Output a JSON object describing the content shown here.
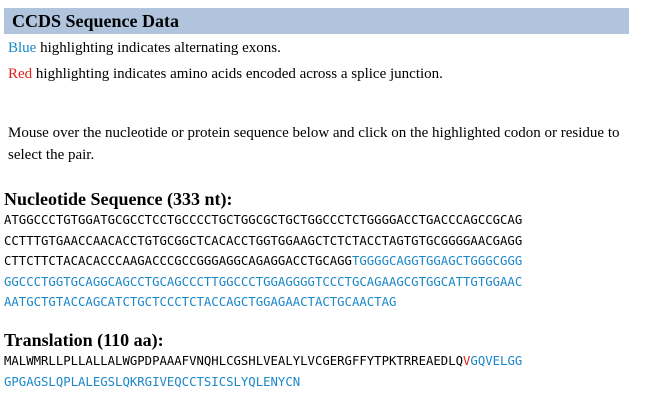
{
  "header": {
    "title": "CCDS Sequence Data"
  },
  "legend": {
    "blue_word": "Blue",
    "blue_text": " highlighting indicates alternating exons.",
    "red_word": "Red",
    "red_text": " highlighting indicates amino acids encoded across a splice junction."
  },
  "instructions": "Mouse over the nucleotide or protein sequence below and click on the highlighted codon or residue to select the pair.",
  "nucleotide": {
    "title": "Nucleotide Sequence (333 nt):",
    "lines": [
      [
        {
          "text": "ATGGCCCTGTGGATGCGCCTCCTGCCCCTGCTGGCGCTGCTGGCCCTCTGGGGACCTGACCCAGCCGCAG",
          "color": "black"
        }
      ],
      [
        {
          "text": "CCTTTGTGAACCAACACCTGTGCGGCTCACACCTGGTGGAAGCTCTCTACCTAGTGTGCGGGGAACGAGG",
          "color": "black"
        }
      ],
      [
        {
          "text": "CTTCTTCTACACACCCAAGACCCGCCGGGAGGCAGAGGACCTGCAGG",
          "color": "black"
        },
        {
          "text": "TGGGGCAGGTGGAGCTGGGCGGG",
          "color": "blue"
        }
      ],
      [
        {
          "text": "GGCCCTGGTGCAGGCAGCCTGCAGCCCTTGGCCCTGGAGGGGTCCCTGCAGAAGCGTGGCATTGTGGAAC",
          "color": "blue"
        }
      ],
      [
        {
          "text": "AATGCTGTACCAGCATCTGCTCCCTCTACCAGCTGGAGAACTACTGCAACTAG",
          "color": "blue"
        }
      ]
    ]
  },
  "translation": {
    "title": "Translation (110 aa):",
    "lines": [
      [
        {
          "text": "MALWMRLLPLLALLALWGPDPAAAFVNQHLCGSHLVEALYLVCGERGFFYTPKTRREAEDLQ",
          "color": "black"
        },
        {
          "text": "V",
          "color": "red"
        },
        {
          "text": "GQVELGG",
          "color": "blue"
        }
      ],
      [
        {
          "text": "GPGAGSLQPLALEGSLQKRGIVEQCCTSICSLYQLENYCN",
          "color": "blue"
        }
      ]
    ]
  },
  "colors": {
    "header_bg": "#b0c4de",
    "blue": "#1a87c9",
    "red": "#e0201d"
  }
}
